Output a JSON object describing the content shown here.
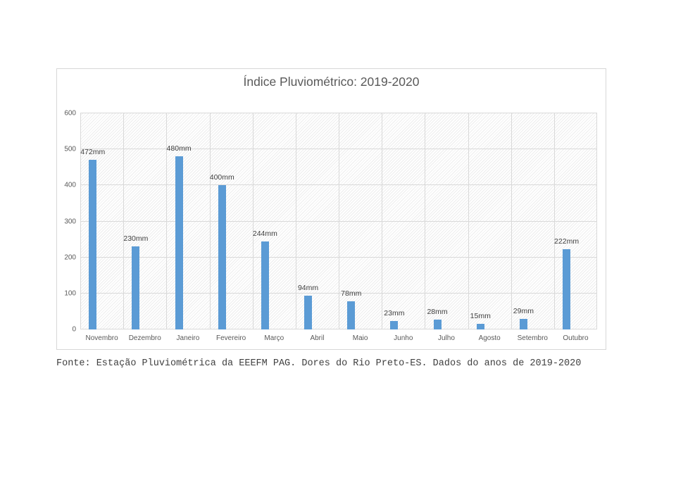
{
  "chart_data": {
    "type": "bar",
    "title": "Índice Pluviométrico: 2019-2020",
    "categories": [
      "Novembro",
      "Dezembro",
      "Janeiro",
      "Fevereiro",
      "Março",
      "Abril",
      "Maio",
      "Junho",
      "Julho",
      "Agosto",
      "Setembro",
      "Outubro"
    ],
    "values": [
      472,
      230,
      480,
      400,
      244,
      94,
      78,
      23,
      28,
      15,
      29,
      222
    ],
    "value_labels": [
      "472mm",
      "230mm",
      "480mm",
      "400mm",
      "244mm",
      "94mm",
      "78mm",
      "23mm",
      "28mm",
      "15mm",
      "29mm",
      "222mm"
    ],
    "unit": "mm",
    "xlabel": "",
    "ylabel": "",
    "ylim": [
      0,
      600
    ],
    "yticks": [
      0,
      100,
      200,
      300,
      400,
      500,
      600
    ],
    "grid": true,
    "legend_position": "none",
    "bar_color": "#5b9bd5"
  },
  "caption": "Fonte: Estação Pluviométrica da EEEFM PAG. Dores do Rio Preto-ES. Dados do anos de 2019-2020",
  "colors": {
    "grid": "#d9d9d9",
    "axis_text": "#595959",
    "value_text": "#404040",
    "title_text": "#595959",
    "frame_border": "#d7d7d7",
    "caption_text": "#3f3f3f"
  }
}
